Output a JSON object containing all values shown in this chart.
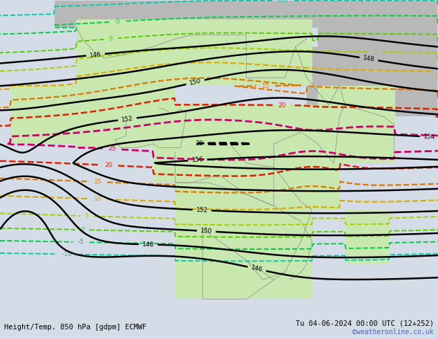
{
  "title_left": "Height/Temp. 850 hPa [gdpm] ECMWF",
  "title_right": "Tu 04-06-2024 00:00 UTC (12+252)",
  "copyright": "©weatheronline.co.uk",
  "background_color": "#d4dce8",
  "land_color_africa": "#c8e8b0",
  "land_color_gray": "#b8b8b8",
  "fig_width": 6.34,
  "fig_height": 4.9,
  "dpi": 100,
  "bottom_text_left": "Height/Temp. 850 hPa [gdpm] ECMWF",
  "bottom_text_right": "Tu 04-06-2024 00:00 UTC (12+252)",
  "bottom_text_color": "#000000",
  "copyright_color": "#4466cc",
  "color_20": "#dd2200",
  "color_25": "#cc0066",
  "color_30": "#000000",
  "color_15": "#dd7700",
  "color_10": "#ddaa00",
  "color_5": "#aacc00",
  "color_0": "#55cc00",
  "color_m5": "#00cc44",
  "color_m10": "#00ccaa",
  "color_height": "#000000"
}
